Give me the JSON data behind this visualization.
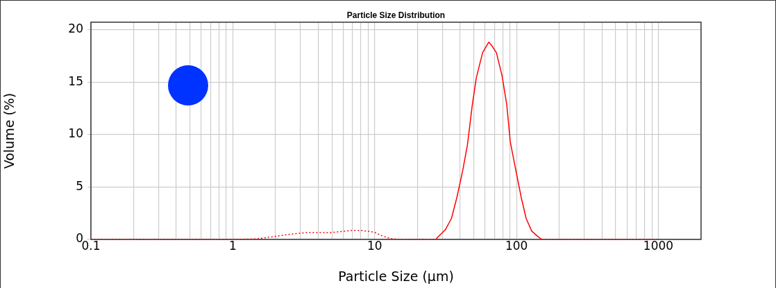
{
  "chart_data": {
    "type": "line",
    "title": "Particle Size Distribution",
    "xlabel": "Particle Size (μm)",
    "ylabel": "Volume (%)",
    "log": "x",
    "grid": true,
    "legend": false,
    "marker": "none",
    "xlim": [
      0.1,
      2000
    ],
    "xticks": [
      0.1,
      {
        "value": 0.2,
        "label": null
      },
      {
        "value": 0.3,
        "label": null
      },
      {
        "value": 0.4,
        "label": null
      },
      {
        "value": 0.5,
        "label": null
      },
      {
        "value": 0.6,
        "label": null
      },
      {
        "value": 0.7,
        "label": null
      },
      {
        "value": 0.8,
        "label": null
      },
      {
        "value": 0.9,
        "label": null
      },
      1,
      {
        "value": 2,
        "label": null
      },
      {
        "value": 3,
        "label": null
      },
      {
        "value": 4,
        "label": null
      },
      {
        "value": 5,
        "label": null
      },
      {
        "value": 6,
        "label": null
      },
      {
        "value": 7,
        "label": null
      },
      {
        "value": 8,
        "label": null
      },
      {
        "value": 9,
        "label": null
      },
      10,
      {
        "value": 20,
        "label": null
      },
      {
        "value": 30,
        "label": null
      },
      {
        "value": 40,
        "label": null
      },
      {
        "value": 50,
        "label": null
      },
      {
        "value": 60,
        "label": null
      },
      {
        "value": 70,
        "label": null
      },
      {
        "value": 80,
        "label": null
      },
      {
        "value": 90,
        "label": null
      },
      100,
      {
        "value": 200,
        "label": null
      },
      {
        "value": 300,
        "label": null
      },
      {
        "value": 400,
        "label": null
      },
      {
        "value": 500,
        "label": null
      },
      {
        "value": 600,
        "label": null
      },
      {
        "value": 700,
        "label": null
      },
      {
        "value": 800,
        "label": null
      },
      {
        "value": 900,
        "label": null
      },
      1000
    ],
    "ylim": [
      0,
      20.7
    ],
    "yticks": [
      0,
      5,
      10,
      15,
      20
    ],
    "series": [
      {
        "color": "#ff0000",
        "line_style": "dotted",
        "x": [
          0.1,
          1.0,
          1.47,
          1.9,
          2.57,
          3.3,
          4.9,
          6.8,
          8.1,
          9.9,
          11.5,
          12.8,
          14.6,
          27
        ],
        "values": [
          0,
          0,
          0.05,
          0.25,
          0.5,
          0.65,
          0.65,
          0.85,
          0.85,
          0.7,
          0.3,
          0.1,
          0,
          0
        ]
      },
      {
        "color": "#ff0000",
        "line_style": "solid",
        "x": [
          27,
          28.1,
          31.5,
          34.8,
          38.0,
          41.7,
          45.1,
          48.8,
          52.1,
          57.7,
          63.8,
          66.7,
          72.2,
          79.1,
          85.5,
          90.4,
          98.9,
          108,
          117,
          128,
          142,
          151
        ],
        "values": [
          0,
          0.26,
          0.92,
          2.0,
          4.0,
          6.5,
          9.0,
          12.8,
          15.4,
          17.8,
          18.8,
          18.5,
          17.8,
          15.6,
          12.8,
          9.3,
          6.6,
          4.0,
          2.0,
          0.8,
          0.26,
          0
        ]
      },
      {
        "color": "#ff0000",
        "line_style": "dotted",
        "x": [
          151,
          300,
          600,
          1000
        ],
        "values": [
          0,
          0,
          0,
          0
        ]
      }
    ]
  }
}
